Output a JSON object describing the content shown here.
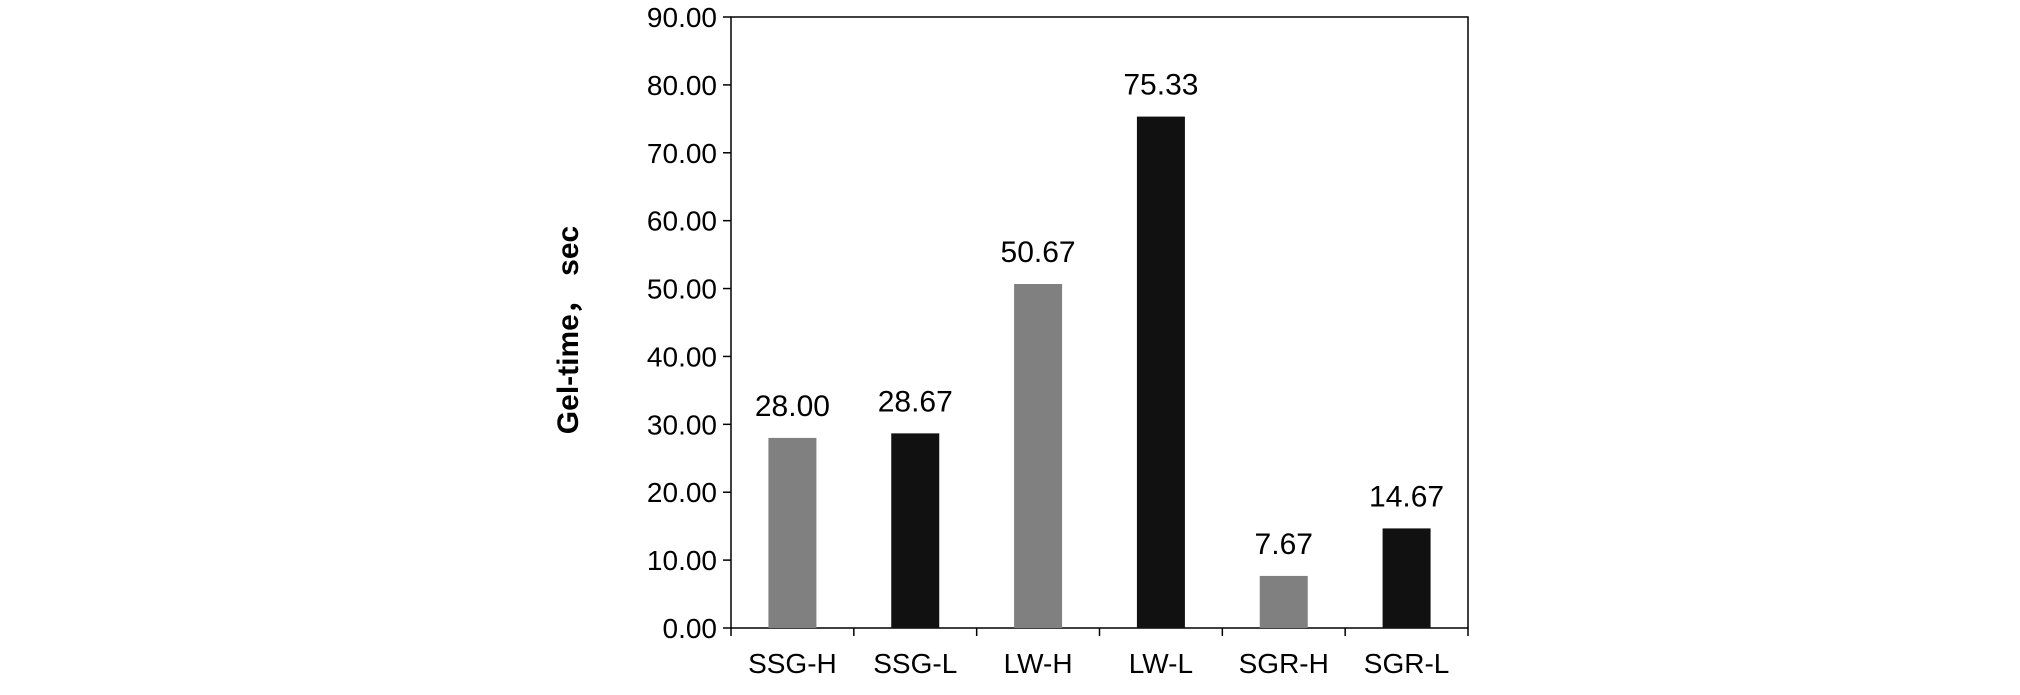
{
  "chart_data": {
    "type": "bar",
    "title": "",
    "xlabel": "",
    "ylabel": "Gel-time， sec",
    "categories": [
      "SSG-H",
      "SSG-L",
      "LW-H",
      "LW-L",
      "SGR-H",
      "SGR-L"
    ],
    "values": [
      28.0,
      28.67,
      50.67,
      75.33,
      7.67,
      14.67
    ],
    "data_labels": [
      "28.00",
      "28.67",
      "50.67",
      "75.33",
      "7.67",
      "14.67"
    ],
    "bar_colors": [
      "#808080",
      "#111111",
      "#808080",
      "#111111",
      "#808080",
      "#111111"
    ],
    "ylim": [
      0,
      90
    ],
    "yticks": [
      0,
      10,
      20,
      30,
      40,
      50,
      60,
      70,
      80,
      90
    ],
    "ytick_labels": [
      "0.00",
      "10.00",
      "20.00",
      "30.00",
      "40.00",
      "50.00",
      "60.00",
      "70.00",
      "80.00",
      "90.00"
    ],
    "grid": false,
    "legend": "none"
  }
}
